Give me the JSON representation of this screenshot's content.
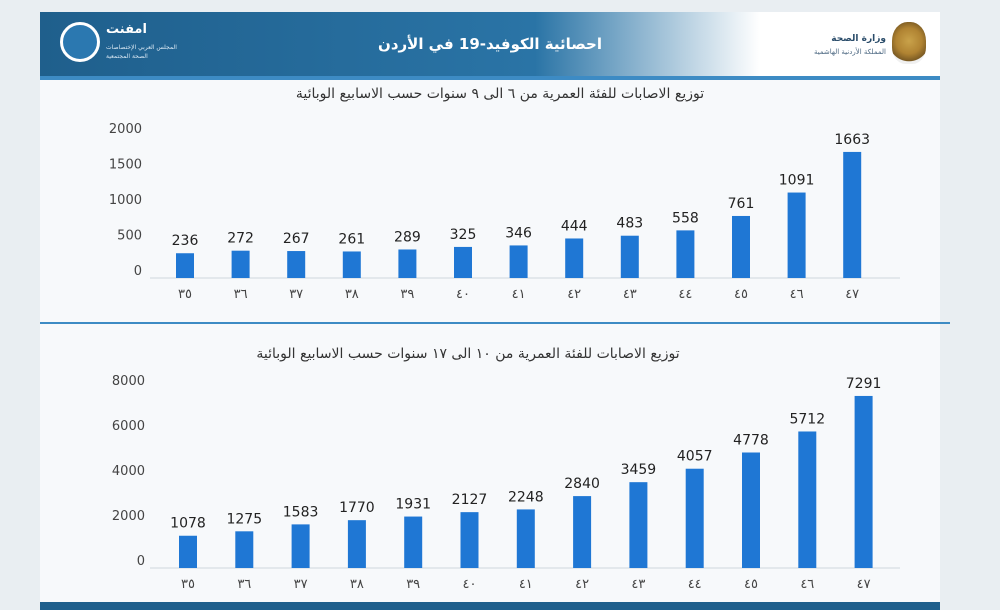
{
  "header": {
    "title": "احصائية الكوفيد-19 في الأردن",
    "left_logo": {
      "name": "امفنت",
      "sub_line1": "المجلس العربي الإختصاصات",
      "sub_line2": "الصحة المجتمعية"
    },
    "right_logo": {
      "name": "وزارة الصحة",
      "sub": "المملكة الأردنية الهاشمية"
    }
  },
  "colors": {
    "bar": "#1f77d4",
    "header": "#1f5f8c",
    "divider": "#3d8bc4"
  },
  "chart_data": [
    {
      "type": "bar",
      "title": "توزيع الاصابات للفئة العمرية من ٦ الى ٩ سنوات حسب الاسابيع الوبائية",
      "categories": [
        "٣٥",
        "٣٦",
        "٣٧",
        "٣٨",
        "٣٩",
        "٤٠",
        "٤١",
        "٤٢",
        "٤٣",
        "٤٤",
        "٤٥",
        "٤٦",
        "٤٧"
      ],
      "values": [
        236,
        272,
        267,
        261,
        289,
        325,
        346,
        444,
        483,
        558,
        761,
        1091,
        1663
      ],
      "y_ticks": [
        0,
        500,
        1000,
        1500,
        2000
      ],
      "ylim": [
        0,
        2000
      ],
      "grid": false,
      "legend": "none"
    },
    {
      "type": "bar",
      "title": "توزيع الاصابات للفئة العمرية من ١٠ الى ١٧ سنوات حسب الاسابيع الوبائية",
      "categories": [
        "٣٥",
        "٣٦",
        "٣٧",
        "٣٨",
        "٣٩",
        "٤٠",
        "٤١",
        "٤٢",
        "٤٣",
        "٤٤",
        "٤٥",
        "٤٦",
        "٤٧"
      ],
      "values": [
        1078,
        1275,
        1583,
        1770,
        1931,
        2127,
        2248,
        2840,
        3459,
        4057,
        4778,
        5712,
        7291
      ],
      "y_ticks": [
        0,
        2000,
        4000,
        6000,
        8000
      ],
      "ylim": [
        0,
        8000
      ],
      "grid": false,
      "legend": "none"
    }
  ]
}
